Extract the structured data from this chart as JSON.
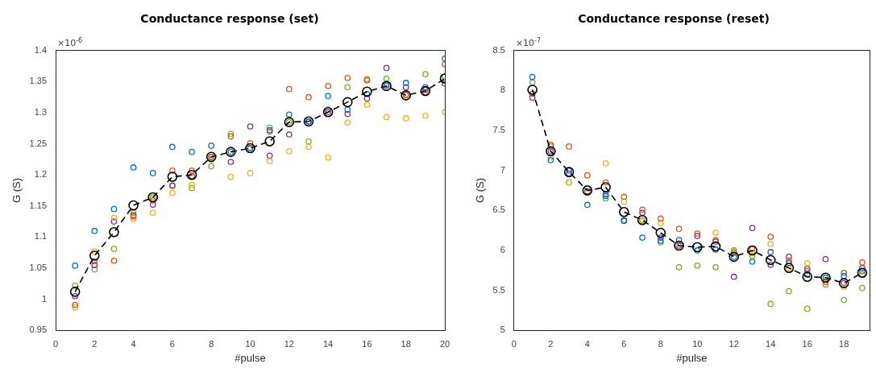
{
  "chart_data": [
    {
      "type": "scatter",
      "title": "Conductance response (set)",
      "xlabel": "#pulse",
      "ylabel": "G (S)",
      "annotations": [
        "×10$^{-6}$"
      ],
      "x": [
        1,
        2,
        3,
        4,
        5,
        6,
        7,
        8,
        9,
        10,
        11,
        12,
        13,
        14,
        15,
        16,
        17,
        18,
        19,
        20
      ],
      "xlim": [
        0,
        20
      ],
      "xticks": [
        0,
        2,
        4,
        6,
        8,
        10,
        12,
        14,
        16,
        18,
        20
      ],
      "ylim": [
        0.95,
        1.4
      ],
      "yticks": [
        0.95,
        1,
        1.05,
        1.1,
        1.15,
        1.2,
        1.25,
        1.3,
        1.35,
        1.4
      ],
      "grid": false,
      "legend": false,
      "marker": "circle",
      "series": [
        {
          "type": "scatter",
          "color": "#0072bd",
          "values": [
            1.054,
            1.11,
            1.145,
            1.212,
            1.203,
            1.245,
            1.237,
            1.247,
            1.237,
            1.243,
            1.272,
            1.297,
            1.286,
            1.327,
            1.305,
            1.33,
            1.345,
            1.348,
            1.341,
            1.387
          ]
        },
        {
          "type": "scatter",
          "color": "#d95319",
          "values": [
            0.991,
            1.061,
            1.062,
            1.133,
            1.159,
            1.207,
            1.207,
            1.229,
            1.262,
            1.251,
            1.27,
            1.338,
            1.325,
            1.343,
            1.356,
            1.352,
            1.343,
            1.329,
            1.333,
            1.378
          ]
        },
        {
          "type": "scatter",
          "color": "#edb120",
          "values": [
            0.987,
            1.077,
            1.131,
            1.129,
            1.139,
            1.171,
            1.184,
            1.224,
            1.197,
            1.203,
            1.222,
            1.238,
            1.245,
            1.228,
            1.284,
            1.313,
            1.293,
            1.291,
            1.295,
            1.301
          ]
        },
        {
          "type": "scatter",
          "color": "#7e2f8e",
          "values": [
            1.005,
            1.055,
            1.125,
            1.135,
            1.152,
            1.183,
            1.198,
            1.229,
            1.221,
            1.278,
            1.231,
            1.265,
            1.286,
            1.301,
            1.298,
            1.323,
            1.372,
            1.341,
            1.337,
            1.347
          ]
        },
        {
          "type": "scatter",
          "color": "#77ac30",
          "values": [
            1.022,
            1.048,
            1.081,
            1.139,
            1.164,
            1.182,
            1.179,
            1.214,
            1.266,
            1.243,
            1.276,
            1.285,
            1.254,
            1.305,
            1.341,
            1.354,
            1.355,
            1.328,
            1.362,
            1.358
          ]
        },
        {
          "type": "line",
          "color": "#000000",
          "line_style": "dashed",
          "values": [
            1.012,
            1.07,
            1.108,
            1.151,
            1.164,
            1.197,
            1.2,
            1.229,
            1.237,
            1.243,
            1.254,
            1.285,
            1.286,
            1.301,
            1.317,
            1.334,
            1.343,
            1.328,
            1.335,
            1.355
          ]
        }
      ]
    },
    {
      "type": "scatter",
      "title": "Conductance response (reset)",
      "xlabel": "#pulse",
      "ylabel": "G (S)",
      "annotations": [
        "×10$^{-7}$"
      ],
      "x": [
        1,
        2,
        3,
        4,
        5,
        6,
        7,
        8,
        9,
        10,
        11,
        12,
        13,
        14,
        15,
        16,
        17,
        18,
        19
      ],
      "xlim": [
        0,
        19.4
      ],
      "xticks": [
        0,
        2,
        4,
        6,
        8,
        10,
        12,
        14,
        16,
        18
      ],
      "ylim": [
        5,
        8.5
      ],
      "yticks": [
        5,
        5.5,
        6,
        6.5,
        7,
        7.5,
        8,
        8.5
      ],
      "grid": false,
      "legend": false,
      "marker": "circle",
      "series": [
        {
          "type": "scatter",
          "color": "#0072bd",
          "values": [
            8.17,
            7.13,
            7.0,
            6.57,
            6.68,
            6.37,
            6.16,
            6.12,
            6.13,
            6.0,
            6.01,
            5.92,
            5.86,
            5.98,
            5.84,
            5.7,
            5.66,
            5.68,
            5.74
          ]
        },
        {
          "type": "scatter",
          "color": "#d95319",
          "values": [
            7.96,
            7.32,
            7.3,
            6.94,
            6.85,
            6.67,
            6.51,
            6.4,
            6.27,
            6.21,
            6.13,
            5.97,
            6.02,
            6.17,
            5.87,
            5.74,
            5.61,
            5.72,
            5.85
          ]
        },
        {
          "type": "scatter",
          "color": "#edb120",
          "values": [
            null,
            7.17,
            6.85,
            6.72,
            7.09,
            6.61,
            6.37,
            6.34,
            6.08,
            null,
            6.22,
            5.98,
            5.96,
            6.08,
            5.78,
            5.84,
            5.6,
            5.54,
            5.7
          ]
        },
        {
          "type": "scatter",
          "color": "#7e2f8e",
          "values": [
            7.91,
            7.24,
            6.96,
            6.74,
            6.7,
            6.37,
            6.47,
            6.16,
            6.06,
            6.18,
            6.11,
            5.67,
            6.28,
            5.82,
            5.92,
            5.77,
            5.89,
            5.59,
            5.78
          ]
        },
        {
          "type": "scatter",
          "color": "#77ac30",
          "values": [
            8.1,
            7.3,
            6.85,
            6.78,
            6.65,
            6.38,
            6.38,
            6.1,
            5.79,
            5.81,
            5.79,
            6.0,
            5.93,
            5.33,
            5.49,
            5.27,
            5.57,
            5.38,
            5.53
          ]
        },
        {
          "type": "line",
          "color": "#000000",
          "line_style": "dashed",
          "values": [
            8.01,
            7.24,
            6.98,
            6.75,
            6.79,
            6.48,
            6.38,
            6.22,
            6.06,
            6.04,
            6.05,
            5.92,
            6.0,
            5.88,
            5.78,
            5.67,
            5.66,
            5.59,
            5.72
          ]
        }
      ]
    }
  ]
}
